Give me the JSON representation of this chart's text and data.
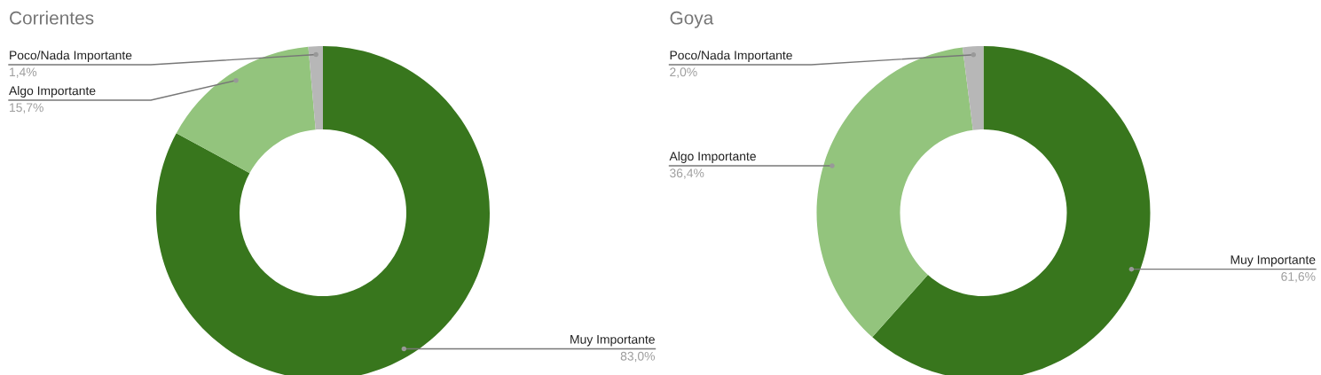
{
  "chart_data": [
    {
      "type": "donut",
      "title": "Corrientes",
      "categories": [
        "Muy Importante",
        "Algo Importante",
        "Poco/Nada Importante"
      ],
      "values": [
        83.0,
        15.7,
        1.4
      ],
      "colors": [
        "#38761d",
        "#93c47d",
        "#b7b7b7"
      ],
      "value_labels": [
        "83,0%",
        "15,7%",
        "1,4%"
      ]
    },
    {
      "type": "donut",
      "title": "Goya",
      "categories": [
        "Muy Importante",
        "Algo Importante",
        "Poco/Nada Importante"
      ],
      "values": [
        61.6,
        36.4,
        2.0
      ],
      "colors": [
        "#38761d",
        "#93c47d",
        "#b7b7b7"
      ],
      "value_labels": [
        "61,6%",
        "36,4%",
        "2,0%"
      ]
    }
  ]
}
